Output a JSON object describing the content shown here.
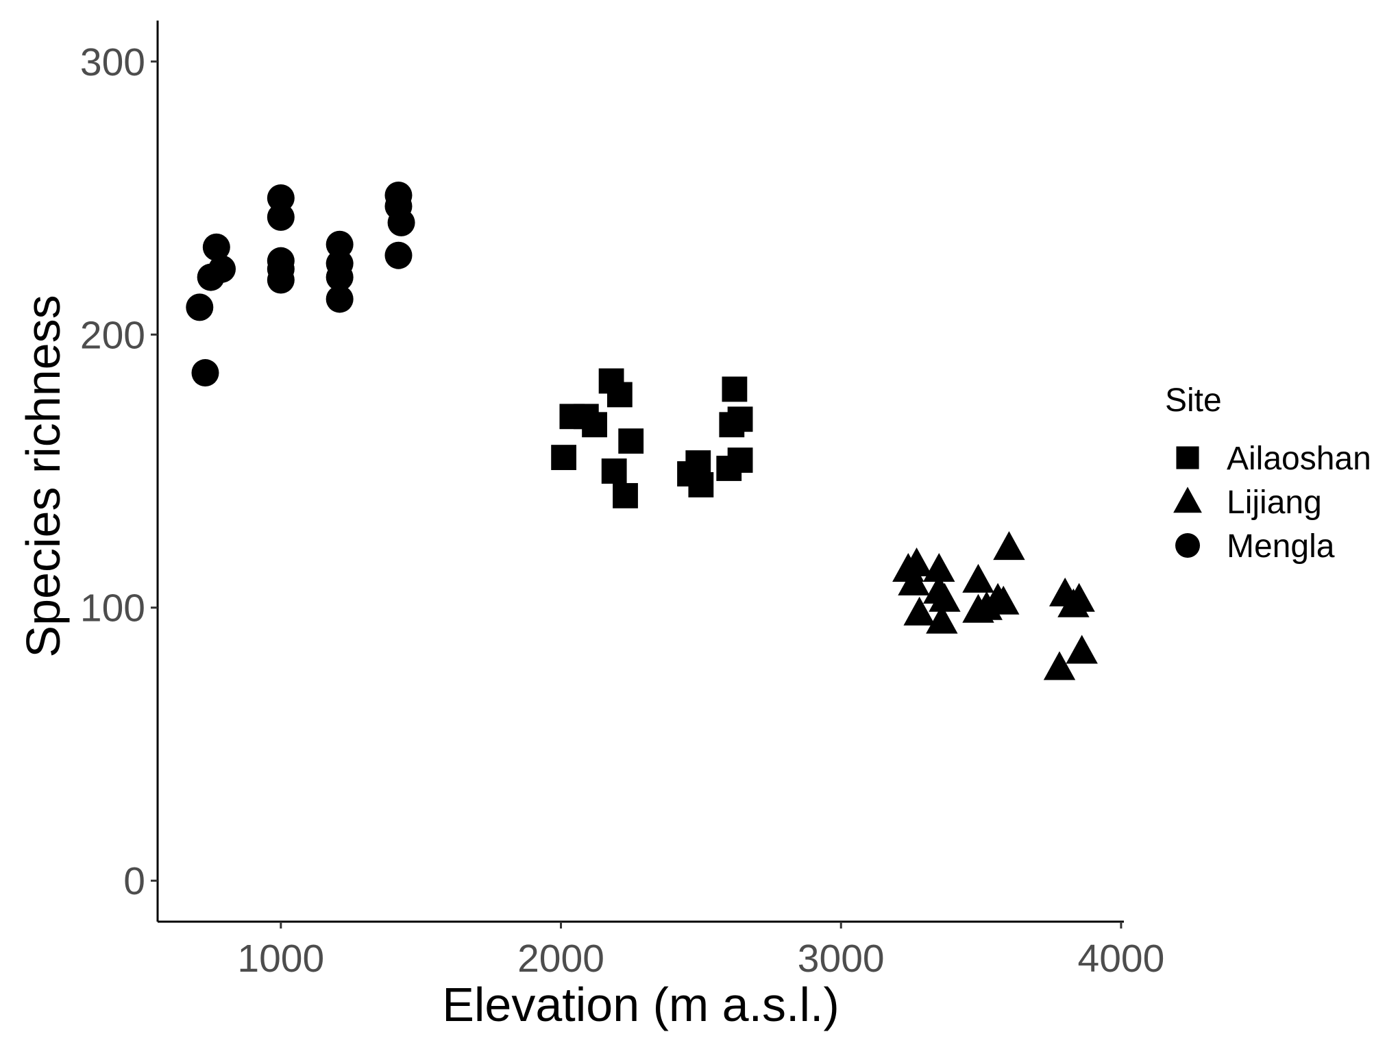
{
  "chart_data": {
    "type": "scatter",
    "title": "",
    "xlabel": "Elevation (m a.s.l.)",
    "ylabel": "Species richness",
    "xlim": [
      560,
      4010
    ],
    "ylim": [
      -15,
      315
    ],
    "xticks": [
      1000,
      2000,
      3000,
      4000
    ],
    "yticks": [
      0,
      100,
      200,
      300
    ],
    "xtick_labels": [
      "1000",
      "2000",
      "3000",
      "4000"
    ],
    "ytick_labels": [
      "0",
      "100",
      "200",
      "300"
    ],
    "grid": false,
    "legend": {
      "title": "Site",
      "position": "right",
      "entries": [
        {
          "label": "Ailaoshan",
          "shape": "square"
        },
        {
          "label": "Lijiang",
          "shape": "triangle"
        },
        {
          "label": "Mengla",
          "shape": "circle"
        }
      ]
    },
    "colors": {
      "points": "#000000",
      "axis": "#000000",
      "tick_label": "#4d4d4d"
    },
    "series": [
      {
        "name": "Ailaoshan",
        "shape": "square",
        "points": [
          {
            "x": 2010,
            "y": 155
          },
          {
            "x": 2040,
            "y": 170
          },
          {
            "x": 2090,
            "y": 170
          },
          {
            "x": 2120,
            "y": 167
          },
          {
            "x": 2180,
            "y": 183
          },
          {
            "x": 2210,
            "y": 178
          },
          {
            "x": 2250,
            "y": 161
          },
          {
            "x": 2190,
            "y": 150
          },
          {
            "x": 2230,
            "y": 141
          },
          {
            "x": 2460,
            "y": 149
          },
          {
            "x": 2490,
            "y": 153
          },
          {
            "x": 2500,
            "y": 145
          },
          {
            "x": 2600,
            "y": 151
          },
          {
            "x": 2620,
            "y": 180
          },
          {
            "x": 2610,
            "y": 167
          },
          {
            "x": 2640,
            "y": 169
          },
          {
            "x": 2640,
            "y": 154
          }
        ]
      },
      {
        "name": "Lijiang",
        "shape": "triangle",
        "points": [
          {
            "x": 3240,
            "y": 114
          },
          {
            "x": 3260,
            "y": 109
          },
          {
            "x": 3270,
            "y": 116
          },
          {
            "x": 3280,
            "y": 98
          },
          {
            "x": 3350,
            "y": 114
          },
          {
            "x": 3350,
            "y": 106
          },
          {
            "x": 3370,
            "y": 103
          },
          {
            "x": 3360,
            "y": 95
          },
          {
            "x": 3490,
            "y": 110
          },
          {
            "x": 3490,
            "y": 99
          },
          {
            "x": 3520,
            "y": 100
          },
          {
            "x": 3560,
            "y": 103
          },
          {
            "x": 3580,
            "y": 102
          },
          {
            "x": 3600,
            "y": 122
          },
          {
            "x": 3800,
            "y": 105
          },
          {
            "x": 3830,
            "y": 101
          },
          {
            "x": 3850,
            "y": 103
          },
          {
            "x": 3780,
            "y": 78
          },
          {
            "x": 3860,
            "y": 84
          }
        ]
      },
      {
        "name": "Mengla",
        "shape": "circle",
        "points": [
          {
            "x": 710,
            "y": 210
          },
          {
            "x": 730,
            "y": 186
          },
          {
            "x": 750,
            "y": 221
          },
          {
            "x": 770,
            "y": 232
          },
          {
            "x": 790,
            "y": 224
          },
          {
            "x": 1000,
            "y": 250
          },
          {
            "x": 1000,
            "y": 243
          },
          {
            "x": 1000,
            "y": 227
          },
          {
            "x": 1000,
            "y": 224
          },
          {
            "x": 1000,
            "y": 220
          },
          {
            "x": 1210,
            "y": 233
          },
          {
            "x": 1210,
            "y": 226
          },
          {
            "x": 1210,
            "y": 221
          },
          {
            "x": 1210,
            "y": 213
          },
          {
            "x": 1420,
            "y": 251
          },
          {
            "x": 1420,
            "y": 247
          },
          {
            "x": 1430,
            "y": 241
          },
          {
            "x": 1420,
            "y": 229
          }
        ]
      }
    ]
  }
}
